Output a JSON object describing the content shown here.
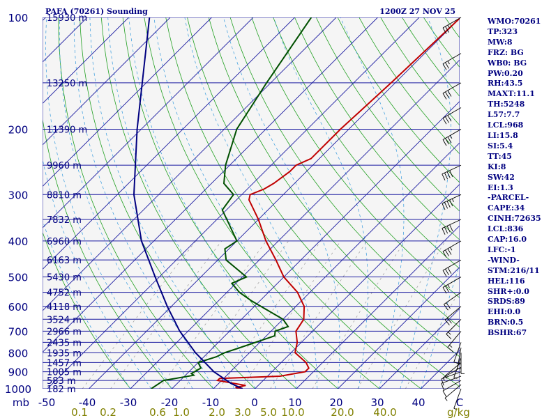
{
  "header": {
    "station": "PAFA (70261) Sounding",
    "time": "1200Z 27 NOV 25"
  },
  "chart_data": {
    "type": "skew-t log-p sounding",
    "y_axis": {
      "label": "mb",
      "scale": "log",
      "range": [
        1000,
        100
      ],
      "pressure_levels": [
        100,
        200,
        300,
        400,
        500,
        600,
        700,
        800,
        900,
        1000
      ]
    },
    "x_axis": {
      "temperature_ticks": [
        -50,
        -40,
        -30,
        -20,
        -10,
        0,
        10,
        20,
        30,
        40
      ],
      "temperature_tick_labels": [
        "-50",
        "-40",
        "-30",
        "-20",
        "-10",
        "0",
        "10",
        "20",
        "30",
        "40"
      ],
      "unit_label": "C"
    },
    "mixing_ratio_labels": [
      "0.1",
      "0.2",
      "0.6",
      "1.0",
      "2.0",
      "3.0",
      "5.0",
      "10.0",
      "20.0",
      "40.0"
    ],
    "mixing_ratio_unit": "g/kg",
    "heights": [
      {
        "p": 100,
        "label": "15930 m"
      },
      {
        "p": 150,
        "label": "13250 m"
      },
      {
        "p": 200,
        "label": "11390 m"
      },
      {
        "p": 250,
        "label": "9960 m"
      },
      {
        "p": 300,
        "label": "8810 m"
      },
      {
        "p": 350,
        "label": "7832 m"
      },
      {
        "p": 400,
        "label": "6960 m"
      },
      {
        "p": 450,
        "label": "6163 m"
      },
      {
        "p": 500,
        "label": "5430 m"
      },
      {
        "p": 550,
        "label": "4752 m"
      },
      {
        "p": 600,
        "label": "4118 m"
      },
      {
        "p": 650,
        "label": "3524 m"
      },
      {
        "p": 700,
        "label": "2966 m"
      },
      {
        "p": 750,
        "label": "2435 m"
      },
      {
        "p": 800,
        "label": "1935 m"
      },
      {
        "p": 850,
        "label": "1457 m"
      },
      {
        "p": 900,
        "label": "1005 m"
      },
      {
        "p": 950,
        "label": "583 m"
      },
      {
        "p": 1000,
        "label": "182 m"
      }
    ],
    "series": [
      {
        "name": "temperature",
        "color": "#c00000",
        "points": [
          [
            1000,
            -3
          ],
          [
            992,
            -5
          ],
          [
            980,
            -3
          ],
          [
            950,
            -11
          ],
          [
            938,
            -11
          ],
          [
            925,
            3
          ],
          [
            900,
            8
          ],
          [
            880,
            8
          ],
          [
            850,
            6
          ],
          [
            800,
            1
          ],
          [
            750,
            -1
          ],
          [
            700,
            -4
          ],
          [
            650,
            -5
          ],
          [
            600,
            -8
          ],
          [
            550,
            -13
          ],
          [
            500,
            -20
          ],
          [
            450,
            -26
          ],
          [
            400,
            -33
          ],
          [
            350,
            -40
          ],
          [
            310,
            -47
          ],
          [
            300,
            -48
          ],
          [
            290,
            -46
          ],
          [
            280,
            -45
          ],
          [
            260,
            -44
          ],
          [
            250,
            -44
          ],
          [
            240,
            -42
          ],
          [
            200,
            -42
          ],
          [
            150,
            -41
          ],
          [
            100,
            -40
          ]
        ]
      },
      {
        "name": "dewpoint",
        "color": "#005000",
        "points": [
          [
            1000,
            -25
          ],
          [
            950,
            -24
          ],
          [
            920,
            -18
          ],
          [
            910,
            -19
          ],
          [
            880,
            -18
          ],
          [
            850,
            -20
          ],
          [
            820,
            -17
          ],
          [
            800,
            -16
          ],
          [
            780,
            -14
          ],
          [
            720,
            -8
          ],
          [
            700,
            -9
          ],
          [
            680,
            -7
          ],
          [
            650,
            -10
          ],
          [
            620,
            -15
          ],
          [
            580,
            -22
          ],
          [
            550,
            -27
          ],
          [
            520,
            -31
          ],
          [
            500,
            -29
          ],
          [
            450,
            -38
          ],
          [
            420,
            -41
          ],
          [
            400,
            -40
          ],
          [
            360,
            -46
          ],
          [
            330,
            -51
          ],
          [
            300,
            -52
          ],
          [
            280,
            -57
          ],
          [
            250,
            -61
          ],
          [
            200,
            -67
          ],
          [
            150,
            -71
          ],
          [
            100,
            -76
          ]
        ]
      },
      {
        "name": "parcel",
        "color": "#000080",
        "points": [
          [
            1000,
            -3
          ],
          [
            968,
            -7
          ],
          [
            900,
            -14
          ],
          [
            800,
            -23
          ],
          [
            700,
            -32
          ],
          [
            600,
            -41
          ],
          [
            500,
            -51
          ],
          [
            400,
            -63
          ],
          [
            300,
            -76
          ],
          [
            200,
            -91
          ],
          [
            100,
            -115
          ]
        ]
      }
    ],
    "wind_barbs": [
      {
        "p": 1000,
        "dir": 200,
        "spd": 5
      },
      {
        "p": 975,
        "dir": 230,
        "spd": 5
      },
      {
        "p": 950,
        "dir": 240,
        "spd": 10
      },
      {
        "p": 925,
        "dir": 250,
        "spd": 10
      },
      {
        "p": 900,
        "dir": 250,
        "spd": 10
      },
      {
        "p": 875,
        "dir": 240,
        "spd": 5
      },
      {
        "p": 850,
        "dir": 230,
        "spd": 5
      },
      {
        "p": 825,
        "dir": 200,
        "spd": 5
      },
      {
        "p": 800,
        "dir": 180,
        "spd": 5
      },
      {
        "p": 775,
        "dir": 190,
        "spd": 5
      },
      {
        "p": 750,
        "dir": 200,
        "spd": 10
      },
      {
        "p": 700,
        "dir": 220,
        "spd": 15
      },
      {
        "p": 650,
        "dir": 225,
        "spd": 15
      },
      {
        "p": 600,
        "dir": 230,
        "spd": 20
      },
      {
        "p": 550,
        "dir": 235,
        "spd": 20
      },
      {
        "p": 500,
        "dir": 240,
        "spd": 25
      },
      {
        "p": 450,
        "dir": 240,
        "spd": 30
      },
      {
        "p": 400,
        "dir": 240,
        "spd": 35
      },
      {
        "p": 350,
        "dir": 245,
        "spd": 40
      },
      {
        "p": 300,
        "dir": 245,
        "spd": 45
      },
      {
        "p": 250,
        "dir": 245,
        "spd": 40
      },
      {
        "p": 200,
        "dir": 240,
        "spd": 35
      },
      {
        "p": 175,
        "dir": 240,
        "spd": 30
      },
      {
        "p": 150,
        "dir": 240,
        "spd": 30
      },
      {
        "p": 125,
        "dir": 240,
        "spd": 25
      },
      {
        "p": 100,
        "dir": 240,
        "spd": 25
      }
    ]
  },
  "indices": [
    "WMO:70261",
    "TP:323",
    "MW:8",
    "FRZ: BG",
    "WB0: BG",
    "PW:0.20",
    "RH:43.5",
    "MAXT:11.1",
    "TH:5248",
    "L57:7.7",
    "LCL:968",
    "LI:15.8",
    "SI:5.4",
    "TT:45",
    "KI:8",
    "SW:42",
    "EI:1.3",
    "-PARCEL-",
    "CAPE:34",
    "CINH:72635",
    "LCL:836",
    "CAP:16.0",
    "LFC:-1",
    "-WIND-",
    "STM:216/11",
    "HEL:116",
    "SHR+:0.0",
    "SRDS:89",
    "EHI:0.0",
    "BRN:0.5",
    "BSHR:67"
  ]
}
